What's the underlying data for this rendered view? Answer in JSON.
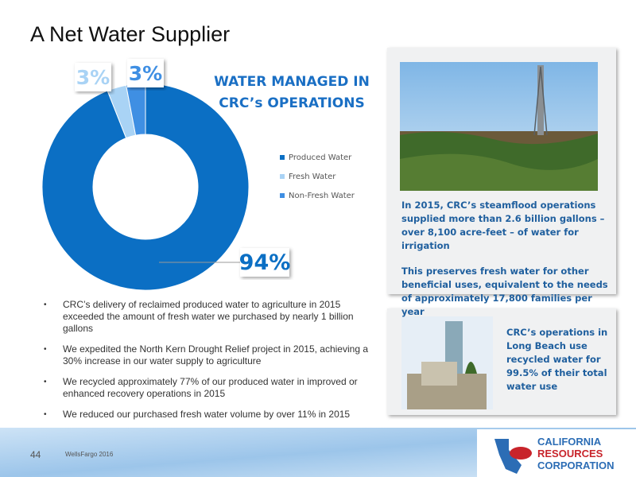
{
  "title": "A Net Water Supplier",
  "chart_data": {
    "type": "donut",
    "title": "WATER  MANAGED IN CRC’s OPERATIONS",
    "categories": [
      "Produced Water",
      "Fresh Water",
      "Non-Fresh Water"
    ],
    "values": [
      94,
      3,
      3
    ],
    "value_labels": [
      "94%",
      "3%",
      "3%"
    ],
    "colors": [
      "#0b6fc4",
      "#a9d3f5",
      "#3f8fe3"
    ],
    "legend": "right"
  },
  "panels": [
    {
      "paragraphs": [
        "In 2015, CRC’s steamflood operations supplied more than 2.6 billion gallons – over 8,100 acre-feet – of water for irrigation",
        "This preserves fresh water for other beneficial uses, equivalent to the needs of approximately 17,800 families per year"
      ]
    },
    {
      "paragraphs": [
        "CRC’s operations in Long Beach use recycled water for 99.5% of their total water use"
      ]
    }
  ],
  "bullets": [
    "CRC’s delivery of reclaimed produced water to agriculture in 2015 exceeded the amount of fresh water we purchased by nearly 1 billion gallons",
    "We expedited the North Kern Drought Relief project in 2015, achieving a 30% increase in our water supply to agriculture",
    "We recycled approximately 77% of our produced water in improved or enhanced recovery operations in 2015",
    "We reduced our purchased fresh water volume by over 11% in 2015"
  ],
  "footer": {
    "page": "44",
    "event": "WellsFargo 2016",
    "logo": [
      "CALIFORNIA",
      "RESOURCES",
      "CORPORATION"
    ]
  }
}
